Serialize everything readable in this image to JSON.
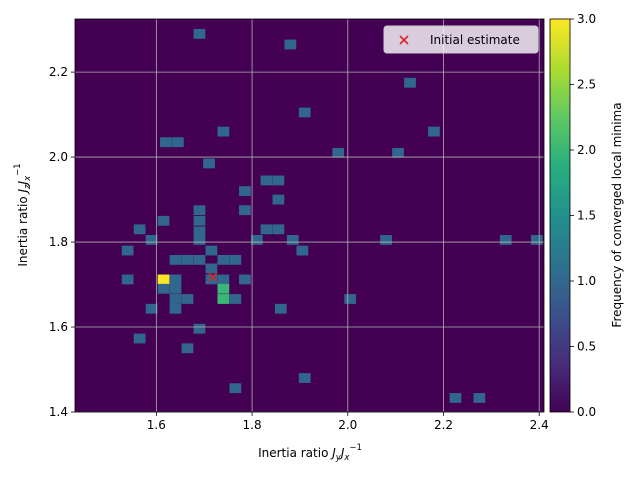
{
  "chart_data": {
    "type": "heatmap",
    "xlabel": "Inertia ratio J_y J_x^{-1}",
    "ylabel": "Inertia ratio J_z J_x^{-1}",
    "xlabel_parts": {
      "main": "Inertia ratio ",
      "a": "J",
      "a_sub": "y",
      "b": "J",
      "b_sub": "x",
      "sup": "−1"
    },
    "ylabel_parts": {
      "main": "Inertia ratio ",
      "a": "J",
      "a_sub": "z",
      "b": "J",
      "b_sub": "x",
      "sup": "−1"
    },
    "xlim": [
      1.43,
      2.41
    ],
    "ylim": [
      1.4,
      2.325
    ],
    "x_ticks": [
      1.6,
      1.8,
      2.0,
      2.2,
      2.4
    ],
    "y_ticks": [
      1.4,
      1.6,
      1.8,
      2.0,
      2.2
    ],
    "x_tick_labels": [
      "1.6",
      "1.8",
      "2.0",
      "2.2",
      "2.4"
    ],
    "y_tick_labels": [
      "1.4",
      "1.6",
      "1.8",
      "2.0",
      "2.2"
    ],
    "grid": true,
    "colormap": "viridis",
    "colorbar": {
      "label": "Frequency of converged local minima",
      "min": 0,
      "max": 3,
      "ticks": [
        0.0,
        0.5,
        1.0,
        1.5,
        2.0,
        2.5,
        3.0
      ],
      "tick_labels": [
        "0.0",
        "0.5",
        "1.0",
        "1.5",
        "2.0",
        "2.5",
        "3.0"
      ]
    },
    "bin_width": [
      0.0245,
      0.0231
    ],
    "cells": [
      {
        "x": 1.69,
        "y": 2.29,
        "v": 1
      },
      {
        "x": 1.88,
        "y": 2.265,
        "v": 1
      },
      {
        "x": 2.13,
        "y": 2.175,
        "v": 1
      },
      {
        "x": 1.91,
        "y": 2.105,
        "v": 1
      },
      {
        "x": 1.74,
        "y": 2.06,
        "v": 1
      },
      {
        "x": 2.18,
        "y": 2.06,
        "v": 1
      },
      {
        "x": 1.62,
        "y": 2.035,
        "v": 1
      },
      {
        "x": 1.645,
        "y": 2.035,
        "v": 1
      },
      {
        "x": 1.98,
        "y": 2.01,
        "v": 1
      },
      {
        "x": 2.105,
        "y": 2.01,
        "v": 1
      },
      {
        "x": 1.71,
        "y": 1.985,
        "v": 1
      },
      {
        "x": 1.83,
        "y": 1.945,
        "v": 1
      },
      {
        "x": 1.855,
        "y": 1.945,
        "v": 1
      },
      {
        "x": 1.785,
        "y": 1.92,
        "v": 1
      },
      {
        "x": 1.855,
        "y": 1.9,
        "v": 1
      },
      {
        "x": 1.785,
        "y": 1.875,
        "v": 1
      },
      {
        "x": 1.69,
        "y": 1.875,
        "v": 1
      },
      {
        "x": 1.69,
        "y": 1.85,
        "v": 1
      },
      {
        "x": 1.615,
        "y": 1.85,
        "v": 1
      },
      {
        "x": 1.565,
        "y": 1.83,
        "v": 1
      },
      {
        "x": 1.83,
        "y": 1.83,
        "v": 1
      },
      {
        "x": 1.855,
        "y": 1.83,
        "v": 1
      },
      {
        "x": 1.69,
        "y": 1.825,
        "v": 1
      },
      {
        "x": 1.59,
        "y": 1.805,
        "v": 1
      },
      {
        "x": 1.69,
        "y": 1.805,
        "v": 1
      },
      {
        "x": 1.81,
        "y": 1.805,
        "v": 1
      },
      {
        "x": 1.885,
        "y": 1.805,
        "v": 1
      },
      {
        "x": 2.08,
        "y": 1.805,
        "v": 1
      },
      {
        "x": 2.33,
        "y": 1.805,
        "v": 1
      },
      {
        "x": 2.395,
        "y": 1.805,
        "v": 1
      },
      {
        "x": 1.54,
        "y": 1.78,
        "v": 1
      },
      {
        "x": 1.715,
        "y": 1.78,
        "v": 1
      },
      {
        "x": 1.905,
        "y": 1.78,
        "v": 1
      },
      {
        "x": 1.64,
        "y": 1.758,
        "v": 1
      },
      {
        "x": 1.665,
        "y": 1.758,
        "v": 1
      },
      {
        "x": 1.69,
        "y": 1.758,
        "v": 1
      },
      {
        "x": 1.74,
        "y": 1.758,
        "v": 1
      },
      {
        "x": 1.765,
        "y": 1.758,
        "v": 1
      },
      {
        "x": 1.715,
        "y": 1.738,
        "v": 1
      },
      {
        "x": 1.54,
        "y": 1.712,
        "v": 1
      },
      {
        "x": 1.615,
        "y": 1.712,
        "v": 3
      },
      {
        "x": 1.64,
        "y": 1.712,
        "v": 1
      },
      {
        "x": 1.715,
        "y": 1.712,
        "v": 1
      },
      {
        "x": 1.74,
        "y": 1.712,
        "v": 1
      },
      {
        "x": 1.785,
        "y": 1.712,
        "v": 1
      },
      {
        "x": 1.615,
        "y": 1.69,
        "v": 1
      },
      {
        "x": 1.64,
        "y": 1.69,
        "v": 1
      },
      {
        "x": 1.74,
        "y": 1.69,
        "v": 2
      },
      {
        "x": 1.64,
        "y": 1.666,
        "v": 1
      },
      {
        "x": 1.665,
        "y": 1.666,
        "v": 1
      },
      {
        "x": 1.74,
        "y": 1.666,
        "v": 2
      },
      {
        "x": 1.765,
        "y": 1.666,
        "v": 1
      },
      {
        "x": 2.005,
        "y": 1.666,
        "v": 1
      },
      {
        "x": 1.59,
        "y": 1.643,
        "v": 1
      },
      {
        "x": 1.64,
        "y": 1.643,
        "v": 1
      },
      {
        "x": 1.86,
        "y": 1.643,
        "v": 1
      },
      {
        "x": 1.69,
        "y": 1.596,
        "v": 1
      },
      {
        "x": 1.565,
        "y": 1.573,
        "v": 1
      },
      {
        "x": 1.665,
        "y": 1.55,
        "v": 1
      },
      {
        "x": 1.91,
        "y": 1.48,
        "v": 1
      },
      {
        "x": 1.765,
        "y": 1.456,
        "v": 1
      },
      {
        "x": 2.225,
        "y": 1.433,
        "v": 1
      },
      {
        "x": 2.275,
        "y": 1.433,
        "v": 1
      }
    ],
    "series": [
      {
        "name": "Initial estimate",
        "marker": "x",
        "color": "#d62728",
        "x": [
          1.718
        ],
        "y": [
          1.718
        ]
      }
    ],
    "legend": {
      "position": "upper right",
      "entries": [
        "Initial estimate"
      ]
    }
  }
}
